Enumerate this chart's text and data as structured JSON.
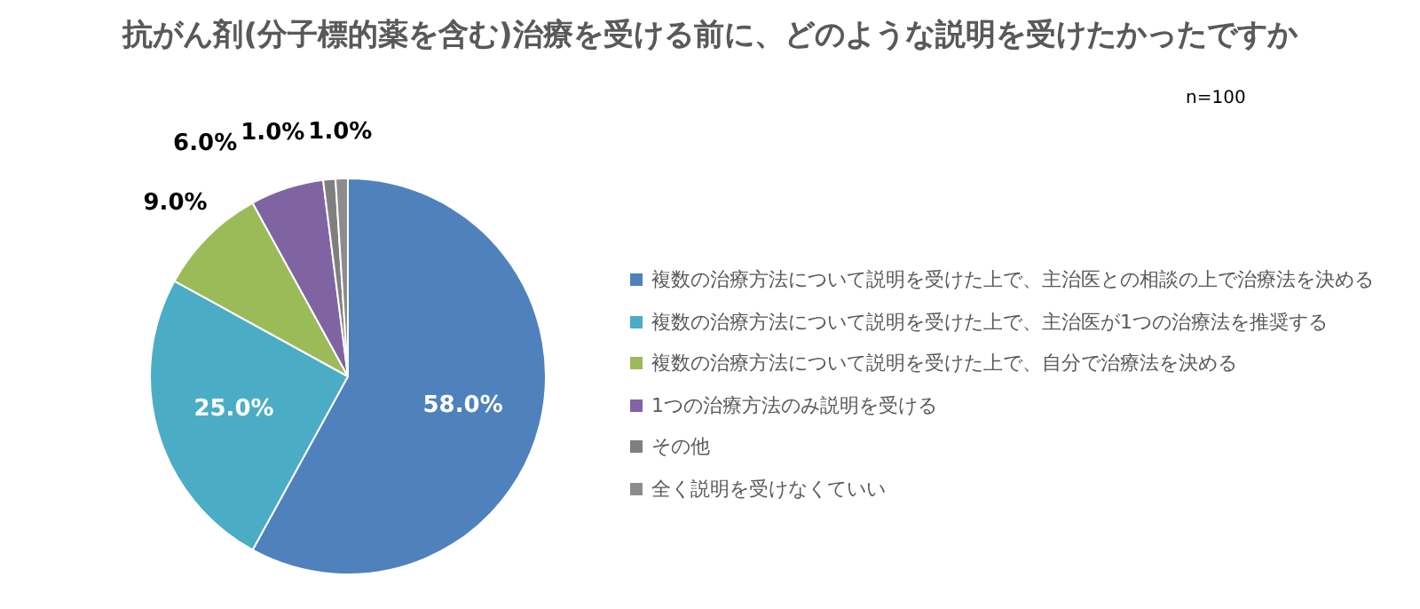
{
  "chart_data": {
    "type": "pie",
    "title": "抗がん剤(分子標的薬を含む)治療を受ける前に、どのような説明を受けたかったですか",
    "annotations": [
      "n=100"
    ],
    "categories": [
      "複数の治療方法について説明を受けた上で、主治医との相談の上で治療法を決める",
      "複数の治療方法について説明を受けた上で、主治医が1つの治療法を推奨する",
      "複数の治療方法について説明を受けた上で、自分で治療法を決める",
      "1つの治療方法のみ説明を受ける",
      "その他",
      "全く説明を受けなくていい"
    ],
    "values": [
      58,
      25,
      9,
      6,
      1,
      1
    ],
    "value_labels": [
      "58.0%",
      "25.0%",
      "9.0%",
      "6.0%",
      "1.0%",
      "1.0%"
    ],
    "colors": [
      "#4f81bd",
      "#4bacc6",
      "#9bbb59",
      "#8064a2",
      "#7f7f7f",
      "#8c8c8c"
    ],
    "legend": "right"
  }
}
